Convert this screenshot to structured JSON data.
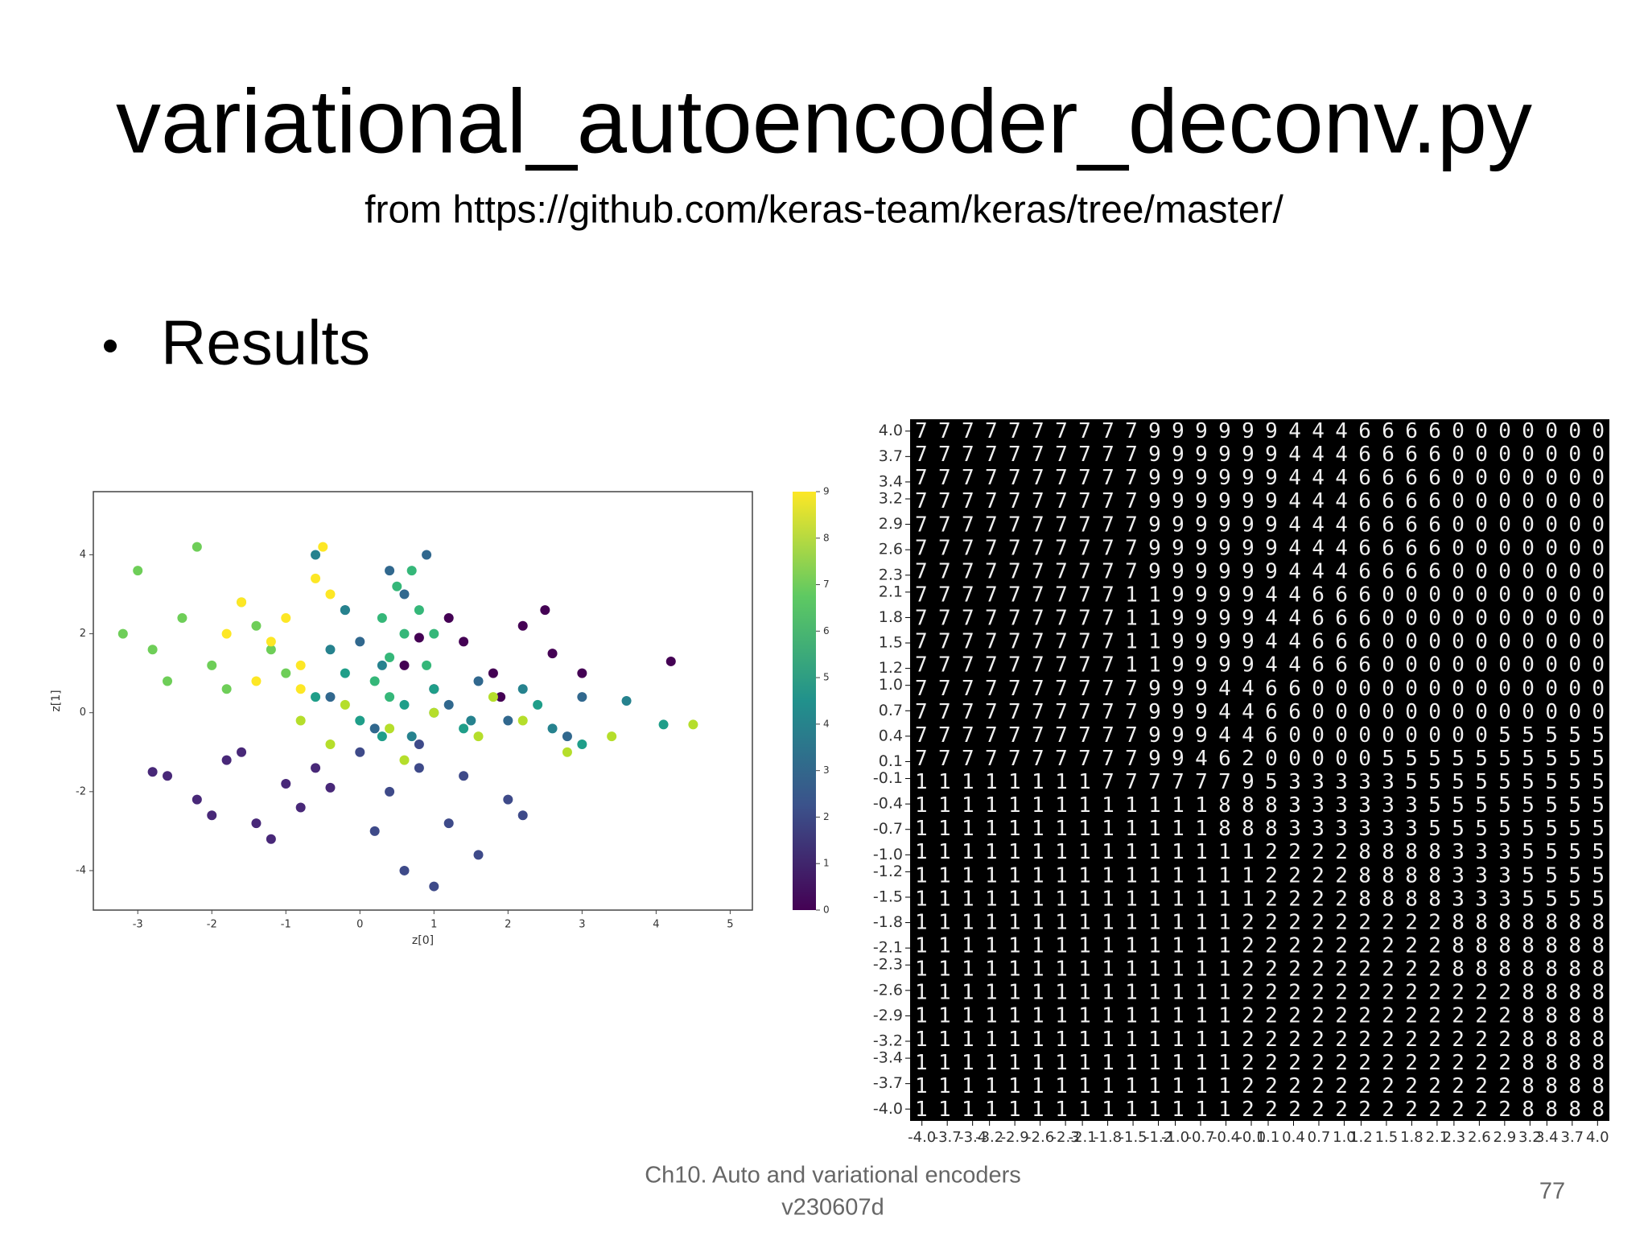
{
  "title": "variational_autoencoder_deconv.py",
  "subtitle": "from https://github.com/keras-team/keras/tree/master/",
  "bullet": "Results",
  "footer": [
    "Ch10. Auto and variational encoders",
    "v230607d"
  ],
  "page_number": 77,
  "chart_data": [
    {
      "type": "scatter",
      "xlabel": "z[0]",
      "ylabel": "z[1]",
      "xlim": [
        -3.6,
        5.3
      ],
      "ylim": [
        -5.0,
        5.6
      ],
      "xticks": [
        -3,
        -2,
        -1,
        0,
        1,
        2,
        3,
        4,
        5
      ],
      "yticks": [
        -4,
        -2,
        0,
        2,
        4
      ],
      "series": [
        {
          "name": "0",
          "color": "#440154",
          "x": [
            0.6,
            1.0,
            1.4,
            1.8,
            2.2,
            2.6,
            3.0,
            1.2,
            1.9,
            2.5,
            4.2,
            0.8
          ],
          "values": [
            1.2,
            0.6,
            1.8,
            1.0,
            2.2,
            1.5,
            1.0,
            2.4,
            0.4,
            2.6,
            1.3,
            1.9
          ]
        },
        {
          "name": "1",
          "color": "#482878",
          "x": [
            -2.6,
            -2.2,
            -1.8,
            -1.4,
            -1.0,
            -0.6,
            -2.0,
            -1.2,
            -0.8,
            -1.6,
            -2.8,
            -0.4
          ],
          "values": [
            -1.6,
            -2.2,
            -1.2,
            -2.8,
            -1.8,
            -1.4,
            -2.6,
            -3.2,
            -2.4,
            -1.0,
            -1.5,
            -1.9
          ]
        },
        {
          "name": "2",
          "color": "#3e4a89",
          "x": [
            0.0,
            0.4,
            0.8,
            1.2,
            1.6,
            2.0,
            0.2,
            0.6,
            1.0,
            1.4,
            0.8,
            2.2
          ],
          "values": [
            -1.0,
            -2.0,
            -1.4,
            -2.8,
            -3.6,
            -2.2,
            -3.0,
            -4.0,
            -4.4,
            -1.6,
            -0.8,
            -2.6
          ]
        },
        {
          "name": "3",
          "color": "#31688e",
          "x": [
            -0.4,
            0.0,
            0.6,
            1.2,
            2.0,
            2.8,
            0.4,
            -0.2,
            1.6,
            0.9,
            3.0,
            0.2
          ],
          "values": [
            0.4,
            1.8,
            3.0,
            0.2,
            -0.2,
            -0.6,
            3.6,
            2.6,
            0.8,
            4.0,
            0.4,
            -0.4
          ]
        },
        {
          "name": "4",
          "color": "#26828e",
          "x": [
            -0.6,
            -0.2,
            0.3,
            1.0,
            2.2,
            2.6,
            0.7,
            -0.4,
            3.6,
            1.5
          ],
          "values": [
            4.0,
            2.6,
            1.2,
            0.0,
            0.6,
            -0.4,
            -0.6,
            1.6,
            0.3,
            -0.2
          ]
        },
        {
          "name": "5",
          "color": "#1f9e89",
          "x": [
            -0.6,
            0.0,
            0.6,
            1.4,
            2.4,
            -0.2,
            1.0,
            3.0,
            4.1,
            0.3
          ],
          "values": [
            0.4,
            -0.2,
            0.2,
            -0.4,
            0.2,
            1.0,
            0.6,
            -0.8,
            -0.3,
            -0.6
          ]
        },
        {
          "name": "6",
          "color": "#35b779",
          "x": [
            0.2,
            0.4,
            0.6,
            0.8,
            0.5,
            0.9,
            0.3,
            0.7,
            1.0,
            0.4
          ],
          "values": [
            0.8,
            1.4,
            2.0,
            2.6,
            3.2,
            1.2,
            2.4,
            3.6,
            2.0,
            0.4
          ]
        },
        {
          "name": "7",
          "color": "#6ece58",
          "x": [
            -3.2,
            -2.8,
            -2.4,
            -2.0,
            -1.6,
            -1.2,
            -2.6,
            -1.8,
            -2.2,
            -1.4,
            -3.0,
            -1.0
          ],
          "values": [
            2.0,
            1.6,
            2.4,
            1.2,
            2.8,
            1.6,
            0.8,
            0.6,
            4.2,
            2.2,
            3.6,
            1.0
          ]
        },
        {
          "name": "8",
          "color": "#b5de2b",
          "x": [
            -0.8,
            -0.2,
            0.4,
            1.0,
            1.6,
            2.2,
            2.8,
            0.6,
            1.8,
            3.4,
            4.5,
            -0.4
          ],
          "values": [
            -0.2,
            0.2,
            -0.4,
            0.0,
            -0.6,
            -0.2,
            -1.0,
            -1.2,
            0.4,
            -0.6,
            -0.3,
            -0.8
          ]
        },
        {
          "name": "9",
          "color": "#fde725",
          "x": [
            -1.6,
            -1.2,
            -0.8,
            -1.0,
            -0.6,
            -1.4,
            -0.4,
            -1.8,
            -0.8,
            -0.5
          ],
          "values": [
            2.8,
            1.8,
            1.2,
            2.4,
            3.4,
            0.8,
            3.0,
            2.0,
            0.6,
            4.2
          ]
        }
      ]
    },
    {
      "type": "digit-grid",
      "xlim": [
        -4.14,
        4.14
      ],
      "ylim": [
        -4.14,
        4.14
      ],
      "xticks": [
        {
          "value": -4.0,
          "label": "-4.0"
        },
        -3.7,
        -3.4,
        -3.2,
        -2.9,
        -2.6,
        -2.3,
        -2.1,
        -1.8,
        -1.5,
        -1.2,
        {
          "value": -1.0,
          "label": "-1.0"
        },
        -0.7,
        -0.4,
        -0.1,
        0.1,
        0.4,
        0.7,
        {
          "value": 1.0,
          "label": "1.0"
        },
        1.2,
        1.5,
        1.8,
        2.1,
        2.3,
        2.6,
        2.9,
        3.2,
        3.4,
        3.7,
        {
          "value": 4.0,
          "label": "4.0"
        }
      ],
      "yticks": [
        {
          "value": 4.0,
          "label": "4.0"
        },
        3.7,
        3.4,
        3.2,
        2.9,
        2.6,
        2.3,
        2.1,
        1.8,
        1.5,
        1.2,
        {
          "value": 1.0,
          "label": "1.0"
        },
        0.7,
        0.4,
        0.1,
        -0.1,
        -0.4,
        -0.7,
        {
          "value": -1.0,
          "label": "-1.0"
        },
        -1.2,
        -1.5,
        -1.8,
        -2.1,
        -2.3,
        -2.6,
        -2.9,
        -3.2,
        -3.4,
        -3.7,
        {
          "value": -4.0,
          "label": "-4.0"
        }
      ],
      "rows": [
        "777777777799999944466660000000",
        "777777777799999944466660000000",
        "777777777799999944466660000000",
        "777777777799999944466660000000",
        "777777777799999944466660000000",
        "777777777799999944466660000000",
        "777777777799999944466660000000",
        "777777777119999446660000000000",
        "777777777119999446660000000000",
        "777777777119999446660000000000",
        "777777777119999446660000000000",
        "777777777799944660000000000000",
        "777777777799944660000000000000",
        "777777777799944600000000055555",
        "777777777799462000005555555555",
        "111111117777779533333555555555",
        "111111111111188833333355555555",
        "111111111111188833333355555555",
        "111111111111111222288883335555",
        "111111111111111222288883335555",
        "111111111111111222288883335555",
        "111111111111112222222228888888",
        "111111111111112222222228888888",
        "111111111111112222222228888888",
        "111111111111112222222222228888",
        "111111111111112222222222228888",
        "111111111111112222222222228888",
        "111111111111112222222222228888",
        "111111111111112222222222228888",
        "111111111111112222222222228888"
      ]
    }
  ]
}
